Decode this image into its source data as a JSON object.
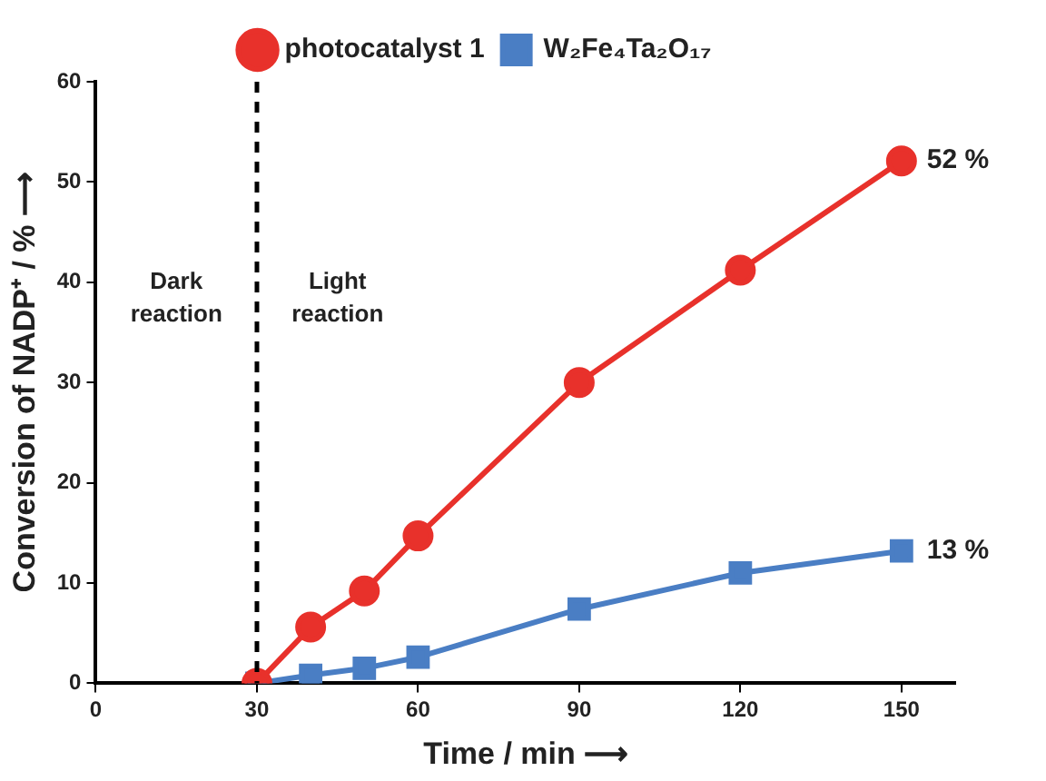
{
  "chart_data": {
    "type": "line",
    "xlabel": "Time / min ⟶",
    "ylabel": "Conversion of NADP⁺ / % ⟶",
    "xlim": [
      0,
      160
    ],
    "xticks": [
      0,
      30,
      60,
      90,
      120,
      150
    ],
    "ylim": [
      0,
      60
    ],
    "yticks": [
      0,
      10,
      20,
      30,
      40,
      50,
      60
    ],
    "grid": false,
    "legend": "top",
    "series": [
      {
        "name": "photocatalyst 1",
        "color": "#e8312b",
        "marker": "circle",
        "x": [
          30,
          40,
          50,
          60,
          90,
          120,
          150
        ],
        "values": [
          0,
          5.6,
          9.2,
          14.7,
          30,
          41.2,
          52.1
        ]
      },
      {
        "name": "W₂Fe₄Ta₂O₁₇",
        "color": "#4a7ec4",
        "marker": "square",
        "x": [
          30,
          40,
          50,
          60,
          90,
          120,
          150
        ],
        "values": [
          0,
          0.8,
          1.5,
          2.6,
          7.4,
          11,
          13.2
        ]
      }
    ],
    "ref_lines": [
      {
        "axis": "x",
        "value": 30,
        "color": "#000000",
        "line_style": "dashed"
      }
    ],
    "annotations": [
      {
        "text": "52 %",
        "x": 150,
        "y": 52.1
      },
      {
        "text": "13 %",
        "x": 150,
        "y": 13.2
      },
      "Dark\nreaction",
      "Light\nreaction"
    ]
  }
}
